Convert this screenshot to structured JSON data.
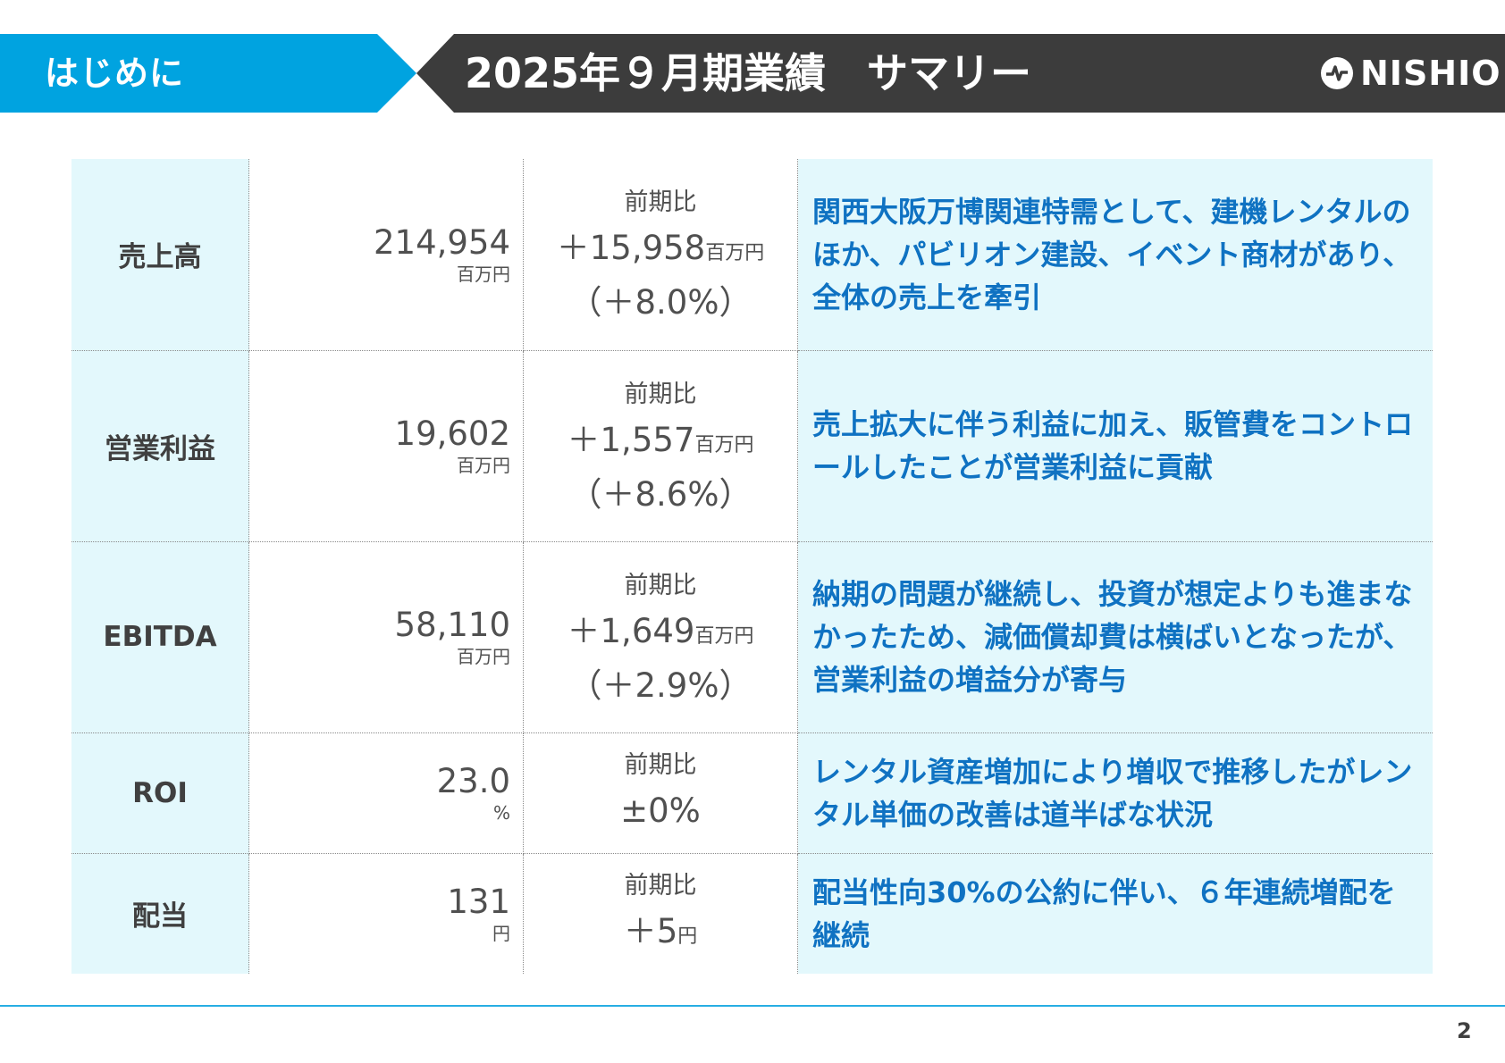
{
  "header": {
    "section_label": "はじめに",
    "title": "2025年９月期業績　サマリー",
    "logo_text": "NISHIO",
    "colors": {
      "section_bg": "#00a3e0",
      "title_bg": "#3c3c3c"
    }
  },
  "summary": {
    "rows": [
      {
        "metric": "売上高",
        "value": "214,954",
        "unit": "百万円",
        "change_label": "前期比",
        "change_amount": "＋15,958",
        "change_unit": "百万円",
        "change_pct": "（＋8.0%）",
        "comment": "関西大阪万博関連特需として、建機レンタルのほか、パビリオン建設、イベント商材があり、全体の売上を牽引"
      },
      {
        "metric": "営業利益",
        "value": "19,602",
        "unit": "百万円",
        "change_label": "前期比",
        "change_amount": "＋1,557",
        "change_unit": "百万円",
        "change_pct": "（＋8.6%）",
        "comment": "売上拡大に伴う利益に加え、販管費をコントロールしたことが営業利益に貢献"
      },
      {
        "metric": "EBITDA",
        "value": "58,110",
        "unit": "百万円",
        "change_label": "前期比",
        "change_amount": "＋1,649",
        "change_unit": "百万円",
        "change_pct": "（＋2.9%）",
        "comment": "納期の問題が継続し、投資が想定よりも進まなかったため、減価償却費は横ばいとなったが、営業利益の増益分が寄与"
      },
      {
        "metric": "ROI",
        "value": "23.0",
        "unit": "%",
        "change_label": "前期比",
        "change_amount": "±0%",
        "change_unit": "",
        "change_pct": "",
        "comment": "レンタル資産増加により増収で推移したがレンタル単価の改善は道半ばな状況"
      },
      {
        "metric": "配当",
        "value": "131",
        "unit": "円",
        "change_label": "前期比",
        "change_amount": "＋5",
        "change_unit": "円",
        "change_pct": "",
        "comment": "配当性向30%の公約に伴い、６年連続増配を継続"
      }
    ]
  },
  "footer": {
    "page_number": "2"
  }
}
